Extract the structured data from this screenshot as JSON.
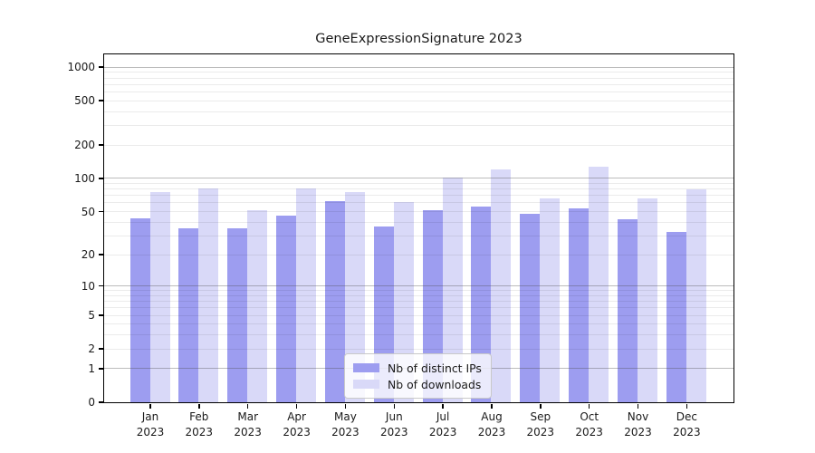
{
  "chart_data": {
    "type": "bar",
    "title": "GeneExpressionSignature 2023",
    "categories": [
      "Jan\n2023",
      "Feb\n2023",
      "Mar\n2023",
      "Apr\n2023",
      "May\n2023",
      "Jun\n2023",
      "Jul\n2023",
      "Aug\n2023",
      "Sep\n2023",
      "Oct\n2023",
      "Nov\n2023",
      "Dec\n2023"
    ],
    "series": [
      {
        "name": "Nb of distinct IPs",
        "color": "#9d9df0",
        "values": [
          43,
          35,
          35,
          45,
          62,
          36,
          51,
          55,
          47,
          53,
          42,
          32
        ]
      },
      {
        "name": "Nb of downloads",
        "color": "#d9d9f8",
        "values": [
          75,
          80,
          51,
          80,
          75,
          61,
          101,
          120,
          65,
          127,
          65,
          79
        ]
      }
    ],
    "xlabel": "",
    "ylabel": "",
    "yscale": "log1p",
    "ylim": [
      0,
      1300
    ],
    "yticks": [
      0,
      1,
      2,
      5,
      10,
      20,
      50,
      100,
      200,
      500,
      1000
    ],
    "grid": "on",
    "grid_major_at": [
      1,
      10,
      100,
      1000
    ],
    "legend_position": "bottom-center"
  },
  "colors": {
    "bar_distinct_ips": "#9d9df0",
    "bar_downloads": "#d9d9f8",
    "axis_frame": "#000000",
    "grid_major": "#b3b3b3",
    "grid_minor": "#ebebeb",
    "text": "#1a1a1a",
    "legend_border": "#c9c9c9"
  }
}
